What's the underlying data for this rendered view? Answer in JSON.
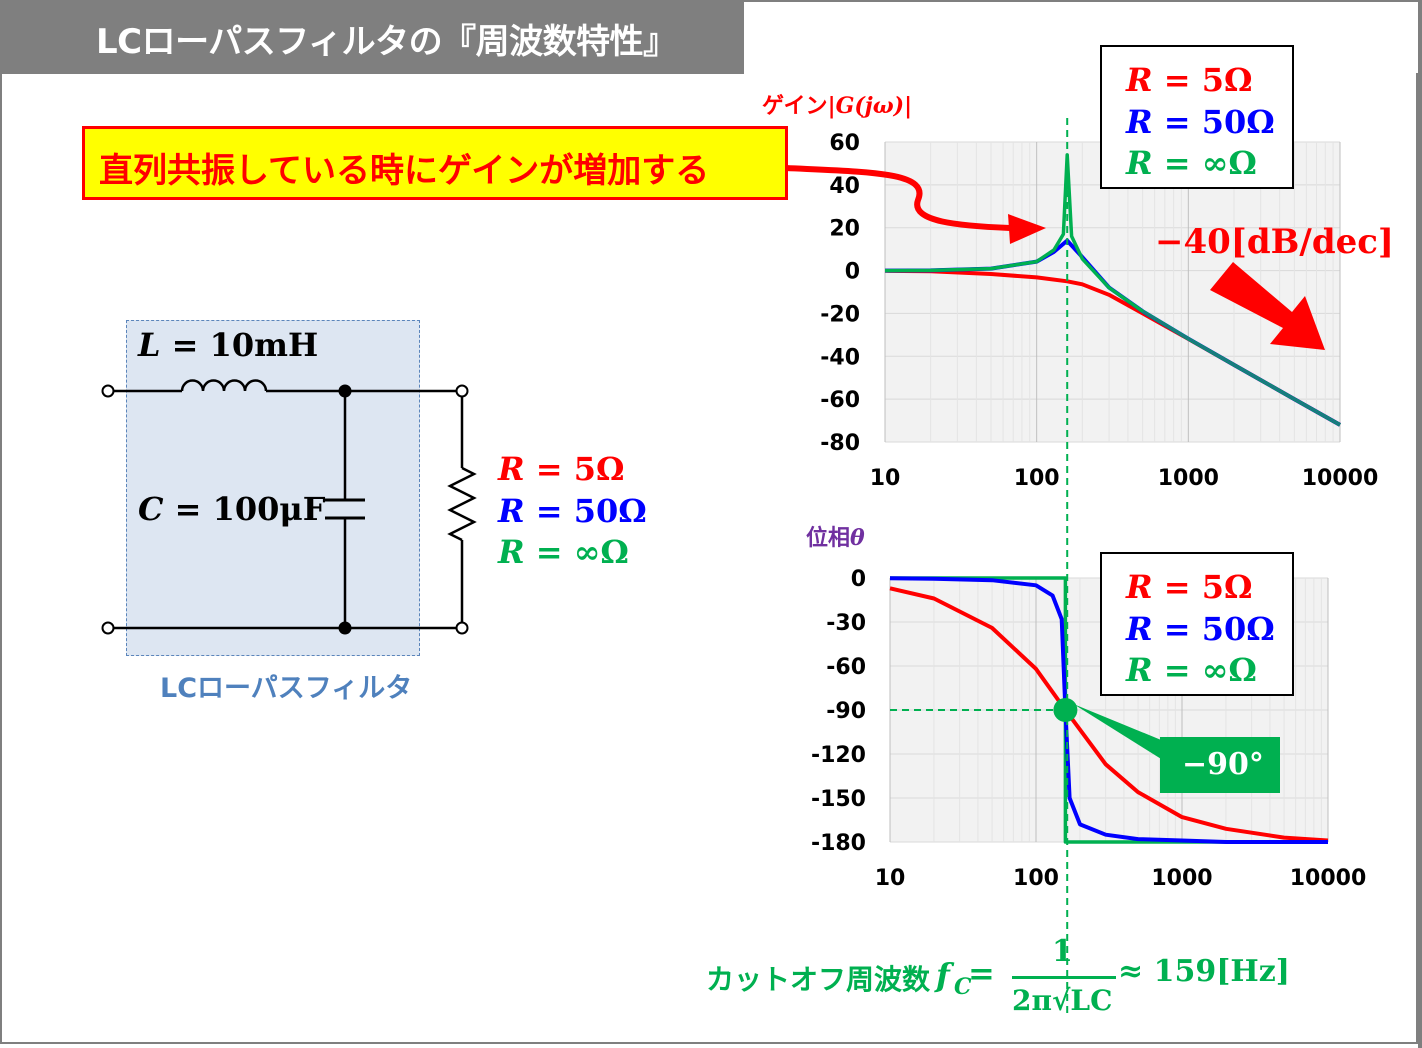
{
  "title": "LCローパスフィルタの『周波数特性』",
  "callout": "直列共振している時にゲインが増加する",
  "circuit": {
    "L_var": "L",
    "L_value": " = 10mH",
    "C_var": "C",
    "C_value": " = 100μF",
    "caption": "LCローパスフィルタ"
  },
  "resistors": [
    {
      "var": "R",
      "value": " = 5Ω",
      "color": "#ff0000"
    },
    {
      "var": "R",
      "value": " = 50Ω",
      "color": "#0000ff"
    },
    {
      "var": "R",
      "value": " = ∞Ω",
      "color": "#00b050"
    }
  ],
  "gain_axis_label_prefix": "ゲイン",
  "gain_axis_label_math": "|G(jω)|",
  "phase_axis_label_prefix": "位相",
  "phase_axis_label_math": "θ",
  "slope_label": "−40[dB/dec]",
  "phase_marker_label": "−90°",
  "cutoff": {
    "prefix": "カットオフ周波数",
    "symbol": "f",
    "sub": "C",
    "eq": " = ",
    "numerator": "1",
    "denominator": "2π√LC",
    "result": " ≈ 159[Hz]"
  },
  "chart_data": [
    {
      "type": "line",
      "name": "gain",
      "xscale": "log",
      "xlim": [
        10,
        10000
      ],
      "ylim": [
        -80,
        60
      ],
      "xticks": [
        "10",
        "100",
        "1000",
        "10000"
      ],
      "yticks": [
        "60",
        "40",
        "20",
        "0",
        "-20",
        "-40",
        "-60",
        "-80"
      ],
      "grid": true,
      "resonance_hz": 159,
      "series": [
        {
          "name": "R = 5Ω",
          "color": "#ff0000",
          "x": [
            10,
            20,
            50,
            100,
            159,
            200,
            300,
            500,
            1000,
            2000,
            5000,
            10000
          ],
          "y": [
            -0.1,
            -0.3,
            -1.6,
            -3.2,
            -5.0,
            -6.4,
            -11.3,
            -20.0,
            -31.9,
            -44.0,
            -60.0,
            -72.0
          ]
        },
        {
          "name": "R = 50Ω",
          "color": "#0000ff",
          "x": [
            10,
            20,
            50,
            100,
            130,
            159,
            200,
            300,
            500,
            1000,
            2000,
            5000,
            10000
          ],
          "y": [
            0.0,
            0.1,
            0.9,
            4.2,
            8.7,
            14.0,
            6.3,
            -7.9,
            -19.0,
            -31.8,
            -44.0,
            -60.0,
            -72.0
          ]
        },
        {
          "name": "R = ∞Ω",
          "color": "#00b050",
          "x": [
            10,
            20,
            50,
            100,
            130,
            150,
            159,
            170,
            200,
            300,
            500,
            1000,
            2000,
            5000,
            10000
          ],
          "y": [
            0.0,
            0.1,
            0.9,
            4.2,
            9.6,
            17.0,
            54.0,
            16.0,
            5.5,
            -8.0,
            -19.0,
            -31.8,
            -44.0,
            -60.0,
            -72.0
          ]
        }
      ]
    },
    {
      "type": "line",
      "name": "phase",
      "xscale": "log",
      "xlim": [
        10,
        10000
      ],
      "ylim": [
        -180,
        0
      ],
      "xticks": [
        "10",
        "100",
        "1000",
        "10000"
      ],
      "yticks": [
        "0",
        "-30",
        "-60",
        "-90",
        "-120",
        "-150",
        "-180"
      ],
      "grid": true,
      "marker_point": {
        "x": 159,
        "y": -90
      },
      "series": [
        {
          "name": "R = 5Ω",
          "color": "#ff0000",
          "x": [
            10,
            20,
            50,
            100,
            159,
            300,
            500,
            1000,
            2000,
            5000,
            10000
          ],
          "y": [
            -7,
            -14,
            -34,
            -62,
            -90,
            -127,
            -146,
            -163,
            -171,
            -177,
            -179
          ]
        },
        {
          "name": "R = 50Ω",
          "color": "#0000ff",
          "x": [
            10,
            20,
            50,
            100,
            130,
            150,
            159,
            170,
            200,
            300,
            500,
            1000,
            2000,
            10000
          ],
          "y": [
            -0.2,
            -0.5,
            -1.5,
            -5,
            -12,
            -28,
            -90,
            -150,
            -168,
            -175,
            -178,
            -179,
            -180,
            -180
          ]
        },
        {
          "name": "R = ∞Ω",
          "color": "#00b050",
          "x": [
            10,
            159,
            159,
            10000
          ],
          "y": [
            0,
            0,
            -180,
            -180
          ]
        }
      ]
    }
  ]
}
